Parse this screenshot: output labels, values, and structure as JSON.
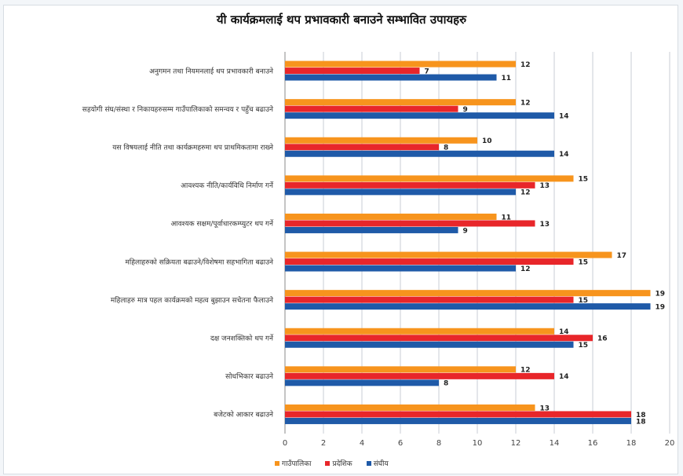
{
  "chart_data": {
    "type": "bar",
    "orientation": "horizontal",
    "title": "यी कार्यक्रमलाई थप प्रभावकारी बनाउने सम्भावित उपायहरु",
    "categories": [
      "अनुगमन तथा नियमनलाई थप प्रभावकारी बनाउने",
      "सहयोगी संघ/संस्था र निकायहरुसम्म गाउँपालिकाको समन्वय र पहुँच बढाउने",
      "यस विषयलाई नीति तथा कार्यक्रमहरुमा थप प्राथमिकतामा राख्ने",
      "आवश्यक नीति/कार्यविधि निर्माण गर्ने",
      "आवश्यक सक्षम/पूर्वाधारकम्प्युटर थप गर्ने",
      "महिलाहरुको सक्रियता बढाउने/विशेषमा सहभागिता बढाउने",
      "महिलाहरु मात्र पहल कार्यक्रमको महत्व बुझाउन सचेतना फैलाउने",
      "दक्ष जनशक्तिको थप गर्ने",
      "सोधभिकार बढाउने",
      "बजेटको आकार बढाउने"
    ],
    "series": [
      {
        "name": "गाउँपालिका",
        "color": "#f7941d",
        "values": [
          12,
          12,
          10,
          15,
          11,
          17,
          19,
          14,
          12,
          13
        ]
      },
      {
        "name": "प्रदेशिक",
        "color": "#e8262a",
        "values": [
          7,
          9,
          8,
          13,
          13,
          15,
          15,
          16,
          14,
          18
        ]
      },
      {
        "name": "संघीय",
        "color": "#1f5aa8",
        "values": [
          11,
          14,
          14,
          12,
          9,
          12,
          19,
          15,
          8,
          18
        ]
      }
    ],
    "xlim": [
      0,
      20
    ],
    "xticks": [
      "0",
      "2",
      "4",
      "6",
      "8",
      "10",
      "12",
      "14",
      "16",
      "18",
      "20"
    ],
    "grid": true,
    "legend_position": "bottom"
  }
}
